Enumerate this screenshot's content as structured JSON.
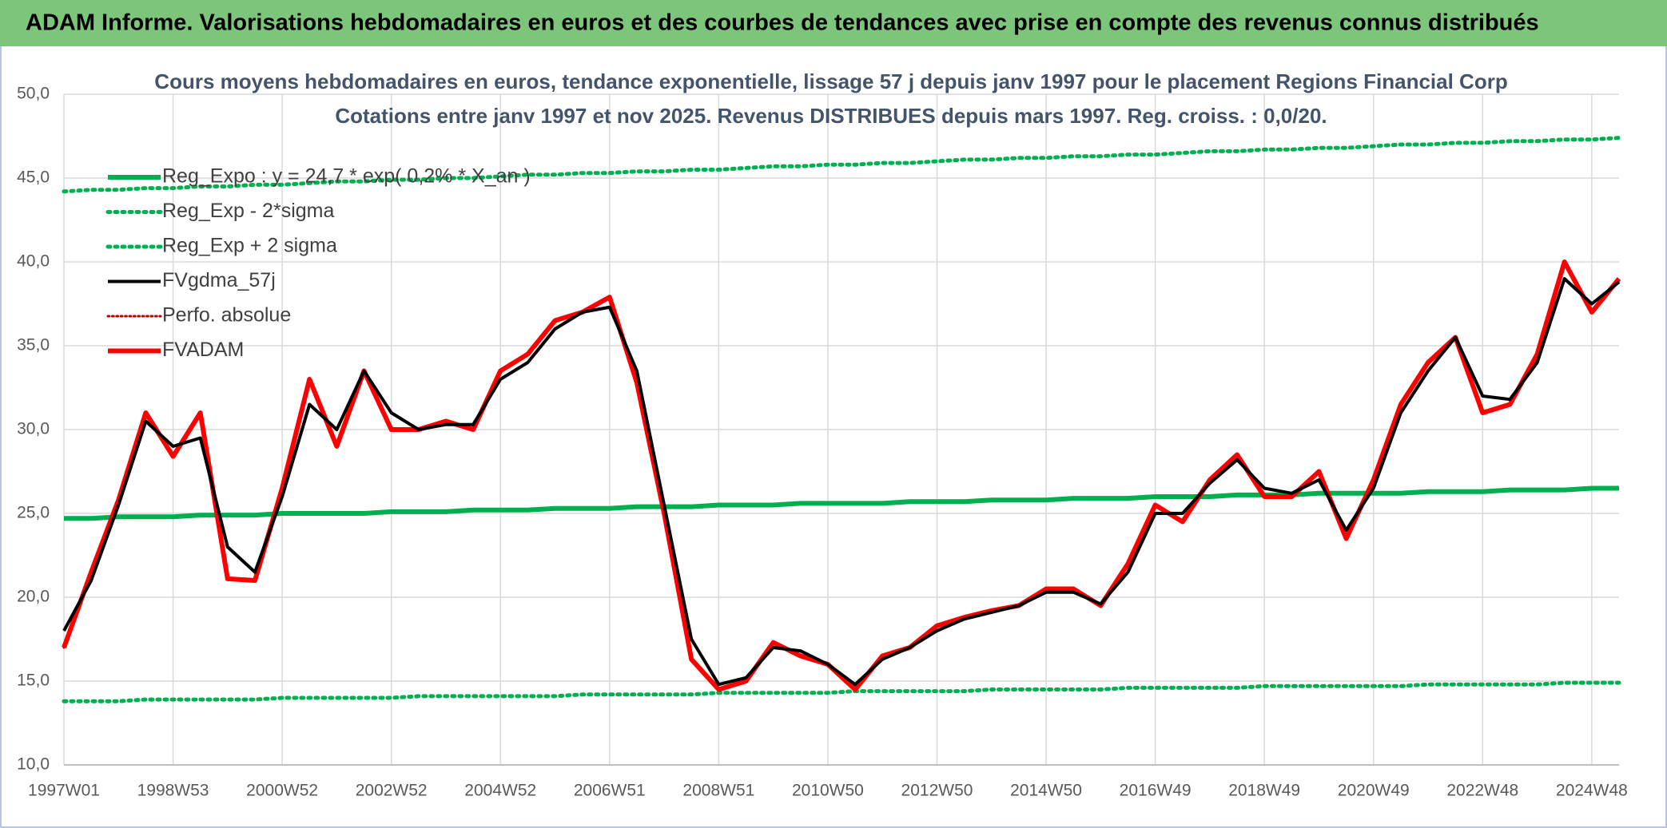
{
  "chart_data": {
    "type": "line",
    "header": "ADAM Informe. Valorisations hebdomadaires en euros et des courbes de tendances avec prise en compte des revenus connus distribués",
    "title": "Cours moyens hebdomadaires en euros, tendance exponentielle, lissage 57 j depuis janv 1997 pour le placement Regions Financial Corp",
    "subtitle": "Cotations entre janv 1997 et nov 2025. Revenus DISTRIBUES depuis mars 1997. Reg. croiss. : 0,0/20.",
    "categories": [
      "1997W01",
      null,
      null,
      null,
      "1998W53",
      null,
      null,
      null,
      "2000W52",
      null,
      null,
      null,
      "2002W52",
      null,
      null,
      null,
      "2004W52",
      null,
      null,
      null,
      "2006W51",
      null,
      null,
      null,
      "2008W51",
      null,
      null,
      null,
      "2010W50",
      null,
      null,
      null,
      "2012W50",
      null,
      null,
      null,
      "2014W50",
      null,
      null,
      null,
      "2016W49",
      null,
      null,
      null,
      "2018W49",
      null,
      null,
      null,
      "2020W49",
      null,
      null,
      null,
      "2022W48",
      null,
      null,
      null,
      "2024W48",
      null
    ],
    "ylim": [
      10,
      50
    ],
    "yticks": [
      {
        "value": 10,
        "label": "10,0"
      },
      {
        "value": 15,
        "label": "15,0"
      },
      {
        "value": 20,
        "label": "20,0"
      },
      {
        "value": 25,
        "label": "25,0"
      },
      {
        "value": 30,
        "label": "30,0"
      },
      {
        "value": 35,
        "label": "35,0"
      },
      {
        "value": 40,
        "label": "40,0"
      },
      {
        "value": 45,
        "label": "45,0"
      },
      {
        "value": 50,
        "label": "50,0"
      }
    ],
    "grid": true,
    "legend": "top-left",
    "series": [
      {
        "name": "Reg_Expo : y = 24,7 * exp( 0,2% * X_an )",
        "color": "#00b050",
        "style": "solid",
        "width": 6,
        "values": [
          24.7,
          24.7,
          24.8,
          24.8,
          24.8,
          24.9,
          24.9,
          24.9,
          25.0,
          25.0,
          25.0,
          25.0,
          25.1,
          25.1,
          25.1,
          25.2,
          25.2,
          25.2,
          25.3,
          25.3,
          25.3,
          25.4,
          25.4,
          25.4,
          25.5,
          25.5,
          25.5,
          25.6,
          25.6,
          25.6,
          25.6,
          25.7,
          25.7,
          25.7,
          25.8,
          25.8,
          25.8,
          25.9,
          25.9,
          25.9,
          26.0,
          26.0,
          26.0,
          26.1,
          26.1,
          26.1,
          26.2,
          26.2,
          26.2,
          26.2,
          26.3,
          26.3,
          26.3,
          26.4,
          26.4,
          26.4,
          26.5,
          26.5
        ]
      },
      {
        "name": "Reg_Exp - 2*sigma",
        "color": "#00b050",
        "style": "dotted",
        "width": 5,
        "values": [
          13.8,
          13.8,
          13.8,
          13.9,
          13.9,
          13.9,
          13.9,
          13.9,
          14.0,
          14.0,
          14.0,
          14.0,
          14.0,
          14.1,
          14.1,
          14.1,
          14.1,
          14.1,
          14.1,
          14.2,
          14.2,
          14.2,
          14.2,
          14.2,
          14.3,
          14.3,
          14.3,
          14.3,
          14.3,
          14.4,
          14.4,
          14.4,
          14.4,
          14.4,
          14.5,
          14.5,
          14.5,
          14.5,
          14.5,
          14.6,
          14.6,
          14.6,
          14.6,
          14.6,
          14.7,
          14.7,
          14.7,
          14.7,
          14.7,
          14.7,
          14.8,
          14.8,
          14.8,
          14.8,
          14.8,
          14.9,
          14.9,
          14.9
        ]
      },
      {
        "name": "Reg_Exp + 2 sigma",
        "color": "#00b050",
        "style": "dotted",
        "width": 5,
        "values": [
          44.2,
          44.3,
          44.3,
          44.4,
          44.4,
          44.5,
          44.5,
          44.6,
          44.6,
          44.7,
          44.8,
          44.8,
          44.9,
          44.9,
          45.0,
          45.0,
          45.1,
          45.2,
          45.2,
          45.3,
          45.3,
          45.4,
          45.4,
          45.5,
          45.5,
          45.6,
          45.7,
          45.7,
          45.8,
          45.8,
          45.9,
          45.9,
          46.0,
          46.1,
          46.1,
          46.2,
          46.2,
          46.3,
          46.3,
          46.4,
          46.4,
          46.5,
          46.6,
          46.6,
          46.7,
          46.7,
          46.8,
          46.8,
          46.9,
          47.0,
          47.0,
          47.1,
          47.1,
          47.2,
          47.2,
          47.3,
          47.3,
          47.4
        ]
      },
      {
        "name": "FVgdma_57j",
        "color": "#000000",
        "style": "solid",
        "width": 4,
        "values": [
          18.0,
          21.0,
          25.5,
          30.5,
          29.0,
          29.5,
          23.0,
          21.5,
          26.0,
          31.5,
          30.0,
          33.5,
          31.0,
          30.0,
          30.3,
          30.3,
          33.0,
          34.0,
          36.0,
          37.0,
          37.3,
          33.5,
          25.5,
          17.5,
          14.8,
          15.2,
          17.0,
          16.8,
          16.0,
          14.8,
          16.3,
          17.0,
          18.0,
          18.7,
          19.1,
          19.5,
          20.3,
          20.3,
          19.6,
          21.5,
          25.0,
          25.0,
          26.8,
          28.2,
          26.5,
          26.2,
          27.0,
          24.0,
          26.5,
          31.0,
          33.5,
          35.5,
          32.0,
          31.8,
          34.0,
          39.0,
          37.5,
          38.8
        ]
      },
      {
        "name": "Perfo. absolue",
        "color": "#c00000",
        "style": "dotted",
        "width": 3,
        "values": [
          17.0,
          21.5,
          25.8,
          31.0,
          28.4,
          31.0,
          21.1,
          21.0,
          26.5,
          33.0,
          29.0,
          33.5,
          30.0,
          30.0,
          30.5,
          30.0,
          33.5,
          34.5,
          36.5,
          37.0,
          37.9,
          32.8,
          25.0,
          16.3,
          14.5,
          15.0,
          17.3,
          16.5,
          16.0,
          14.5,
          16.5,
          17.0,
          18.3,
          18.8,
          19.2,
          19.5,
          20.5,
          20.5,
          19.5,
          22.0,
          25.5,
          24.5,
          27.0,
          28.5,
          26.0,
          26.0,
          27.5,
          23.5,
          27.0,
          31.5,
          34.0,
          35.5,
          31.0,
          31.5,
          34.5,
          40.0,
          37.0,
          39.0
        ]
      },
      {
        "name": "FVADAM",
        "color": "#ff0000",
        "style": "solid",
        "width": 6,
        "values": [
          17.0,
          21.5,
          25.8,
          31.0,
          28.4,
          31.0,
          21.1,
          21.0,
          26.5,
          33.0,
          29.0,
          33.5,
          30.0,
          30.0,
          30.5,
          30.0,
          33.5,
          34.5,
          36.5,
          37.0,
          37.9,
          32.8,
          25.0,
          16.3,
          14.5,
          15.0,
          17.3,
          16.5,
          16.0,
          14.5,
          16.5,
          17.0,
          18.3,
          18.8,
          19.2,
          19.5,
          20.5,
          20.5,
          19.5,
          22.0,
          25.5,
          24.5,
          27.0,
          28.5,
          26.0,
          26.0,
          27.5,
          23.5,
          27.0,
          31.5,
          34.0,
          35.5,
          31.0,
          31.5,
          34.5,
          40.0,
          37.0,
          39.0
        ]
      }
    ]
  }
}
